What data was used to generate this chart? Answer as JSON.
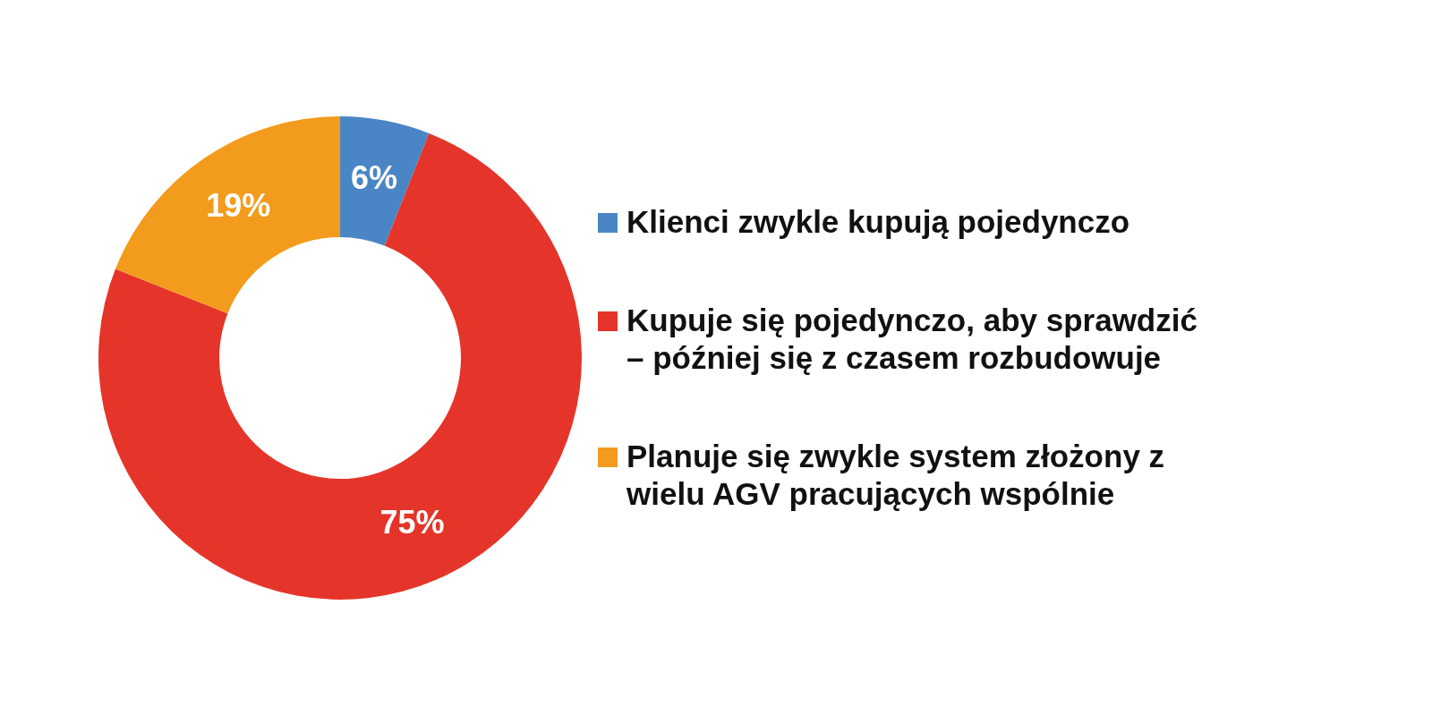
{
  "chart_data": {
    "type": "donut",
    "categories": [
      "Klienci zwykle kupują pojedynczo",
      "Kupuje się pojedynczo, aby sprawdzić – później się z czasem rozbudowuje",
      "Planuje się zwykle system złożony z wielu AGV pracujących wspólnie"
    ],
    "values": [
      6,
      75,
      19
    ],
    "colors": [
      "#4a86c5",
      "#e5352a",
      "#f39b1c"
    ],
    "value_labels": [
      "6%",
      "75%",
      "19%"
    ],
    "legend": "right"
  }
}
